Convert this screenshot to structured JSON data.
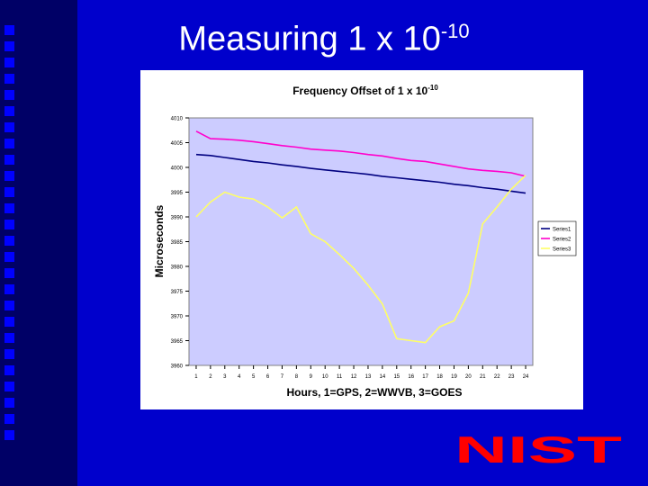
{
  "slide": {
    "title_main": "Measuring 1 x 10",
    "title_exp": "-10"
  },
  "logo": {
    "text": "NIST"
  },
  "colors": {
    "background": "#0000cc",
    "band": "#000066",
    "plot_area": "#ccccff",
    "logo": "#ff0000"
  },
  "chart_data": {
    "type": "line",
    "title": "Frequency Offset of 1 x 10",
    "title_exp": "-10",
    "xlabel": "Hours, 1=GPS, 2=WWVB, 3=GOES",
    "ylabel": "Microseconds",
    "x": [
      1,
      2,
      3,
      4,
      5,
      6,
      7,
      8,
      9,
      10,
      11,
      12,
      13,
      14,
      15,
      16,
      17,
      18,
      19,
      20,
      21,
      22,
      23,
      24
    ],
    "ylim": [
      3960,
      4010
    ],
    "yticks": [
      3960,
      3965,
      3970,
      3975,
      3980,
      3985,
      3990,
      3995,
      4000,
      4005,
      4010
    ],
    "grid": false,
    "legend": "right",
    "series": [
      {
        "name": "Series1",
        "color": "#000080",
        "values": [
          4002.6,
          4002.4,
          4002,
          4001.6,
          4001.2,
          4000.9,
          4000.5,
          4000.2,
          3999.8,
          3999.5,
          3999.2,
          3998.9,
          3998.6,
          3998.2,
          3997.9,
          3997.6,
          3997.3,
          3997,
          3996.6,
          3996.3,
          3995.9,
          3995.6,
          3995.2,
          3994.8
        ]
      },
      {
        "name": "Series2",
        "color": "#ff00cc",
        "values": [
          4007.3,
          4005.8,
          4005.7,
          4005.5,
          4005.2,
          4004.8,
          4004.4,
          4004.1,
          4003.7,
          4003.5,
          4003.3,
          4003,
          4002.6,
          4002.3,
          4001.8,
          4001.4,
          4001.2,
          4000.7,
          4000.2,
          3999.7,
          3999.4,
          3999.2,
          3998.9,
          3998.2
        ]
      },
      {
        "name": "Series3",
        "color": "#ffff66",
        "values": [
          3990,
          3993,
          3995,
          3994,
          3993.6,
          3992,
          3989.8,
          3992,
          3986.6,
          3985,
          3982.4,
          3979.6,
          3976.2,
          3972.4,
          3965.4,
          3965,
          3964.6,
          3967.8,
          3969,
          3974.6,
          3988.6,
          3992,
          3995.6,
          3998.4
        ]
      }
    ]
  }
}
